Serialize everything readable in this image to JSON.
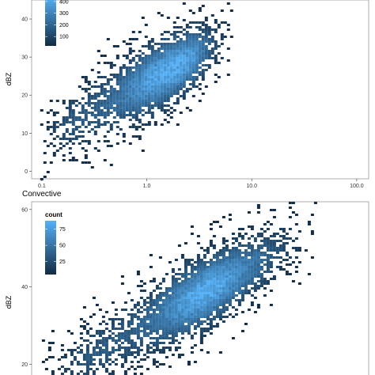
{
  "chart_data": [
    {
      "type": "heatmap",
      "panel_label": "",
      "x_scale": "log",
      "xlim": [
        0.08,
        130
      ],
      "ylim": [
        -2,
        45
      ],
      "x_ticks": [
        {
          "value": 0.1,
          "label": "0.1"
        },
        {
          "value": 1,
          "label": "1.0"
        },
        {
          "value": 10,
          "label": "10.0"
        },
        {
          "value": 100,
          "label": "100.0"
        }
      ],
      "y_ticks": [
        {
          "value": 0,
          "label": "0"
        },
        {
          "value": 10,
          "label": "10"
        },
        {
          "value": 20,
          "label": "20"
        },
        {
          "value": 30,
          "label": "30"
        },
        {
          "value": 40,
          "label": "40"
        }
      ],
      "ylabel": "dBZ",
      "xlabel": "",
      "legend": {
        "title": "",
        "placement": "top-left",
        "ticks": [
          {
            "value": 100,
            "label": "100"
          },
          {
            "value": 200,
            "label": "200"
          },
          {
            "value": 300,
            "label": "300"
          },
          {
            "value": 400,
            "label": "400"
          }
        ],
        "range": [
          20,
          440
        ]
      },
      "density": {
        "trend_dbz_at_0_1": 9,
        "slope_dbz_per_decade": 15,
        "x_range": [
          0.09,
          6.5
        ],
        "core_x": 1.6,
        "max_count": 440
      }
    },
    {
      "type": "heatmap",
      "panel_label": "Convective",
      "x_scale": "log",
      "xlim": [
        0.08,
        130
      ],
      "ylim": [
        15,
        62
      ],
      "x_ticks": [],
      "y_ticks": [
        {
          "value": 20,
          "label": "20"
        },
        {
          "value": 40,
          "label": "40"
        },
        {
          "value": 60,
          "label": "60"
        }
      ],
      "ylabel": "dBZ",
      "xlabel": "",
      "legend": {
        "title": "count",
        "placement": "top-left",
        "ticks": [
          {
            "value": 25,
            "label": "25"
          },
          {
            "value": 50,
            "label": "50"
          },
          {
            "value": 75,
            "label": "75"
          }
        ],
        "range": [
          5,
          88
        ]
      },
      "density": {
        "trend_dbz_at_0_1": 16,
        "slope_dbz_per_decade": 15,
        "x_range": [
          0.1,
          40
        ],
        "core_x": 3.5,
        "max_count": 88
      }
    }
  ]
}
